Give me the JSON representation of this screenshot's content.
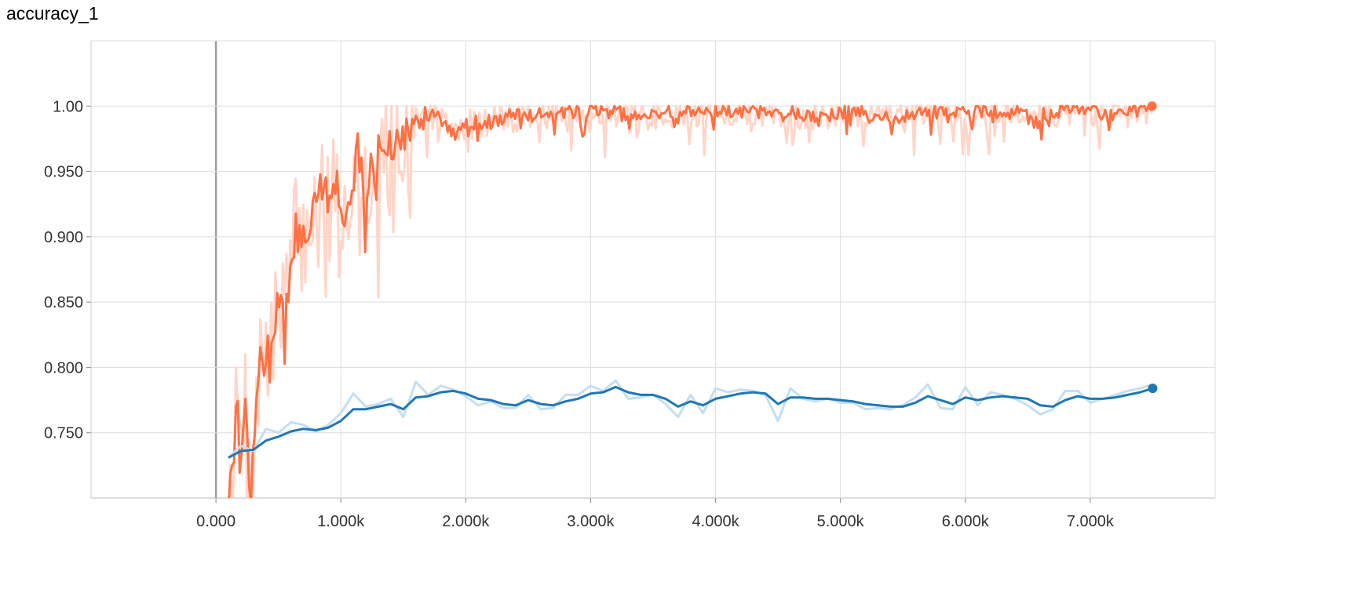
{
  "chart_data": {
    "type": "line",
    "title": "accuracy_1",
    "xlabel": "",
    "ylabel": "",
    "xlim": [
      -1000,
      8000
    ],
    "ylim": [
      0.7,
      1.05
    ],
    "x_ticks": [
      0,
      1000,
      2000,
      3000,
      4000,
      5000,
      6000,
      7000
    ],
    "x_tick_labels": [
      "0.000",
      "1.000k",
      "2.000k",
      "3.000k",
      "4.000k",
      "5.000k",
      "6.000k",
      "7.000k"
    ],
    "y_ticks": [
      0.75,
      0.8,
      0.85,
      0.9,
      0.95,
      1.0
    ],
    "y_tick_labels": [
      "0.750",
      "0.800",
      "0.850",
      "0.900",
      "0.950",
      "1.00"
    ],
    "grid": true,
    "series": [
      {
        "color": "#ff7043",
        "raw_color": "#ffd5c8",
        "smoothed": [
          [
            100,
            0.7
          ],
          [
            150,
            0.75
          ],
          [
            180,
            0.77
          ],
          [
            210,
            0.72
          ],
          [
            240,
            0.79
          ],
          [
            270,
            0.7
          ],
          [
            300,
            0.74
          ],
          [
            330,
            0.79
          ],
          [
            360,
            0.8
          ],
          [
            400,
            0.815
          ],
          [
            440,
            0.8
          ],
          [
            480,
            0.84
          ],
          [
            520,
            0.86
          ],
          [
            560,
            0.85
          ],
          [
            600,
            0.87
          ],
          [
            640,
            0.91
          ],
          [
            680,
            0.9
          ],
          [
            720,
            0.89
          ],
          [
            760,
            0.92
          ],
          [
            800,
            0.93
          ],
          [
            840,
            0.94
          ],
          [
            880,
            0.93
          ],
          [
            920,
            0.935
          ],
          [
            960,
            0.94
          ],
          [
            1000,
            0.92
          ],
          [
            1040,
            0.905
          ],
          [
            1080,
            0.95
          ],
          [
            1120,
            0.97
          ],
          [
            1160,
            0.955
          ],
          [
            1200,
            0.945
          ],
          [
            1240,
            0.95
          ],
          [
            1280,
            0.955
          ],
          [
            1320,
            0.965
          ],
          [
            1360,
            0.97
          ],
          [
            1400,
            0.975
          ],
          [
            1450,
            0.98
          ],
          [
            1500,
            0.985
          ],
          [
            1550,
            0.975
          ],
          [
            1600,
            0.99
          ],
          [
            1700,
            0.995
          ],
          [
            1800,
            0.99
          ],
          [
            1900,
            0.98
          ],
          [
            2000,
            0.985
          ],
          [
            2200,
            0.99
          ],
          [
            2400,
            0.992
          ],
          [
            2600,
            0.994
          ],
          [
            2800,
            0.995
          ],
          [
            3000,
            0.997
          ],
          [
            3200,
            0.996
          ],
          [
            3400,
            0.99
          ],
          [
            3600,
            0.995
          ],
          [
            3800,
            0.996
          ],
          [
            4000,
            0.998
          ],
          [
            4200,
            0.997
          ],
          [
            4400,
            0.995
          ],
          [
            4600,
            0.994
          ],
          [
            4800,
            0.993
          ],
          [
            5000,
            0.995
          ],
          [
            5200,
            0.996
          ],
          [
            5400,
            0.992
          ],
          [
            5600,
            0.995
          ],
          [
            5800,
            0.996
          ],
          [
            6000,
            0.993
          ],
          [
            6200,
            0.997
          ],
          [
            6400,
            0.996
          ],
          [
            6600,
            0.994
          ],
          [
            6800,
            0.997
          ],
          [
            7000,
            0.996
          ],
          [
            7200,
            0.994
          ],
          [
            7400,
            0.997
          ],
          [
            7500,
            0.997
          ]
        ]
      },
      {
        "color": "#1f77b4",
        "raw_color": "#c3dff0",
        "smoothed": [
          [
            100,
            0.731
          ],
          [
            200,
            0.736
          ],
          [
            300,
            0.737
          ],
          [
            400,
            0.744
          ],
          [
            500,
            0.747
          ],
          [
            600,
            0.751
          ],
          [
            700,
            0.753
          ],
          [
            800,
            0.752
          ],
          [
            900,
            0.754
          ],
          [
            1000,
            0.759
          ],
          [
            1100,
            0.768
          ],
          [
            1200,
            0.768
          ],
          [
            1300,
            0.77
          ],
          [
            1400,
            0.772
          ],
          [
            1500,
            0.768
          ],
          [
            1600,
            0.777
          ],
          [
            1700,
            0.778
          ],
          [
            1800,
            0.781
          ],
          [
            1900,
            0.782
          ],
          [
            2000,
            0.78
          ],
          [
            2100,
            0.776
          ],
          [
            2200,
            0.775
          ],
          [
            2300,
            0.772
          ],
          [
            2400,
            0.771
          ],
          [
            2500,
            0.775
          ],
          [
            2600,
            0.772
          ],
          [
            2700,
            0.771
          ],
          [
            2800,
            0.774
          ],
          [
            2900,
            0.776
          ],
          [
            3000,
            0.78
          ],
          [
            3100,
            0.781
          ],
          [
            3200,
            0.785
          ],
          [
            3300,
            0.781
          ],
          [
            3400,
            0.779
          ],
          [
            3500,
            0.779
          ],
          [
            3600,
            0.776
          ],
          [
            3700,
            0.77
          ],
          [
            3800,
            0.774
          ],
          [
            3900,
            0.771
          ],
          [
            4000,
            0.776
          ],
          [
            4100,
            0.778
          ],
          [
            4200,
            0.78
          ],
          [
            4300,
            0.781
          ],
          [
            4400,
            0.78
          ],
          [
            4500,
            0.772
          ],
          [
            4600,
            0.777
          ],
          [
            4700,
            0.777
          ],
          [
            4800,
            0.776
          ],
          [
            4900,
            0.776
          ],
          [
            5000,
            0.775
          ],
          [
            5100,
            0.774
          ],
          [
            5200,
            0.772
          ],
          [
            5300,
            0.771
          ],
          [
            5400,
            0.77
          ],
          [
            5500,
            0.77
          ],
          [
            5600,
            0.773
          ],
          [
            5700,
            0.778
          ],
          [
            5800,
            0.775
          ],
          [
            5900,
            0.772
          ],
          [
            6000,
            0.777
          ],
          [
            6100,
            0.775
          ],
          [
            6200,
            0.777
          ],
          [
            6300,
            0.778
          ],
          [
            6400,
            0.777
          ],
          [
            6500,
            0.776
          ],
          [
            6600,
            0.771
          ],
          [
            6700,
            0.77
          ],
          [
            6800,
            0.775
          ],
          [
            6900,
            0.778
          ],
          [
            7000,
            0.776
          ],
          [
            7100,
            0.776
          ],
          [
            7200,
            0.777
          ],
          [
            7300,
            0.779
          ],
          [
            7400,
            0.781
          ],
          [
            7500,
            0.784
          ]
        ],
        "raw": [
          [
            100,
            0.731
          ],
          [
            200,
            0.74
          ],
          [
            300,
            0.736
          ],
          [
            400,
            0.753
          ],
          [
            500,
            0.75
          ],
          [
            600,
            0.758
          ],
          [
            700,
            0.756
          ],
          [
            800,
            0.751
          ],
          [
            900,
            0.756
          ],
          [
            1000,
            0.765
          ],
          [
            1100,
            0.78
          ],
          [
            1200,
            0.77
          ],
          [
            1300,
            0.772
          ],
          [
            1400,
            0.776
          ],
          [
            1500,
            0.762
          ],
          [
            1600,
            0.789
          ],
          [
            1700,
            0.779
          ],
          [
            1800,
            0.786
          ],
          [
            1900,
            0.783
          ],
          [
            2000,
            0.778
          ],
          [
            2100,
            0.771
          ],
          [
            2200,
            0.774
          ],
          [
            2300,
            0.769
          ],
          [
            2400,
            0.769
          ],
          [
            2500,
            0.779
          ],
          [
            2600,
            0.768
          ],
          [
            2700,
            0.769
          ],
          [
            2800,
            0.779
          ],
          [
            2900,
            0.779
          ],
          [
            3000,
            0.786
          ],
          [
            3100,
            0.782
          ],
          [
            3200,
            0.79
          ],
          [
            3300,
            0.776
          ],
          [
            3400,
            0.777
          ],
          [
            3500,
            0.779
          ],
          [
            3600,
            0.772
          ],
          [
            3700,
            0.762
          ],
          [
            3800,
            0.779
          ],
          [
            3900,
            0.765
          ],
          [
            4000,
            0.784
          ],
          [
            4100,
            0.781
          ],
          [
            4200,
            0.783
          ],
          [
            4300,
            0.782
          ],
          [
            4400,
            0.779
          ],
          [
            4500,
            0.759
          ],
          [
            4600,
            0.784
          ],
          [
            4700,
            0.776
          ],
          [
            4800,
            0.774
          ],
          [
            4900,
            0.776
          ],
          [
            5000,
            0.773
          ],
          [
            5100,
            0.773
          ],
          [
            5200,
            0.768
          ],
          [
            5300,
            0.769
          ],
          [
            5400,
            0.768
          ],
          [
            5500,
            0.771
          ],
          [
            5600,
            0.777
          ],
          [
            5700,
            0.787
          ],
          [
            5800,
            0.769
          ],
          [
            5900,
            0.768
          ],
          [
            6000,
            0.785
          ],
          [
            6100,
            0.771
          ],
          [
            6200,
            0.781
          ],
          [
            6300,
            0.779
          ],
          [
            6400,
            0.776
          ],
          [
            6500,
            0.771
          ],
          [
            6600,
            0.764
          ],
          [
            6700,
            0.768
          ],
          [
            6800,
            0.782
          ],
          [
            6900,
            0.782
          ],
          [
            7000,
            0.773
          ],
          [
            7100,
            0.776
          ],
          [
            7200,
            0.779
          ],
          [
            7300,
            0.782
          ],
          [
            7400,
            0.784
          ],
          [
            7500,
            0.787
          ]
        ]
      }
    ]
  }
}
